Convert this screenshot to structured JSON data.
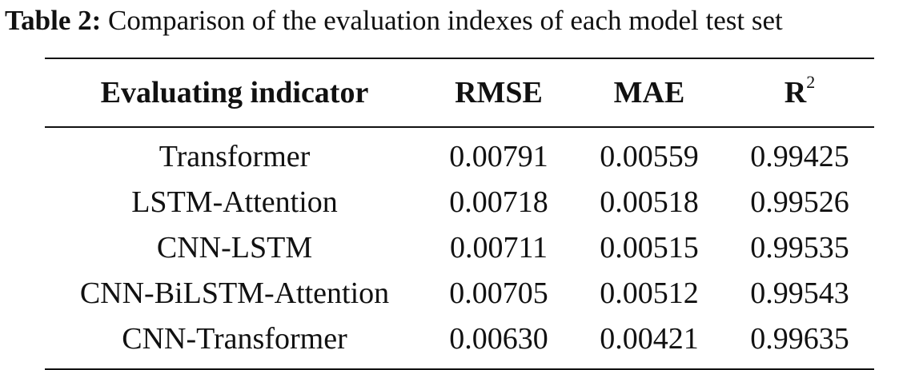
{
  "caption": {
    "label": "Table 2:",
    "text": "Comparison of the evaluation indexes of each model test set"
  },
  "table": {
    "headers": {
      "indicator": "Evaluating indicator",
      "rmse": "RMSE",
      "mae": "MAE",
      "r2_base": "R",
      "r2_sup": "2"
    },
    "rows": [
      {
        "model": "Transformer",
        "rmse": "0.00791",
        "mae": "0.00559",
        "r2": "0.99425"
      },
      {
        "model": "LSTM-Attention",
        "rmse": "0.00718",
        "mae": "0.00518",
        "r2": "0.99526"
      },
      {
        "model": "CNN-LSTM",
        "rmse": "0.00711",
        "mae": "0.00515",
        "r2": "0.99535"
      },
      {
        "model": "CNN-BiLSTM-Attention",
        "rmse": "0.00705",
        "mae": "0.00512",
        "r2": "0.99543"
      },
      {
        "model": "CNN-Transformer",
        "rmse": "0.00630",
        "mae": "0.00421",
        "r2": "0.99635"
      }
    ]
  }
}
